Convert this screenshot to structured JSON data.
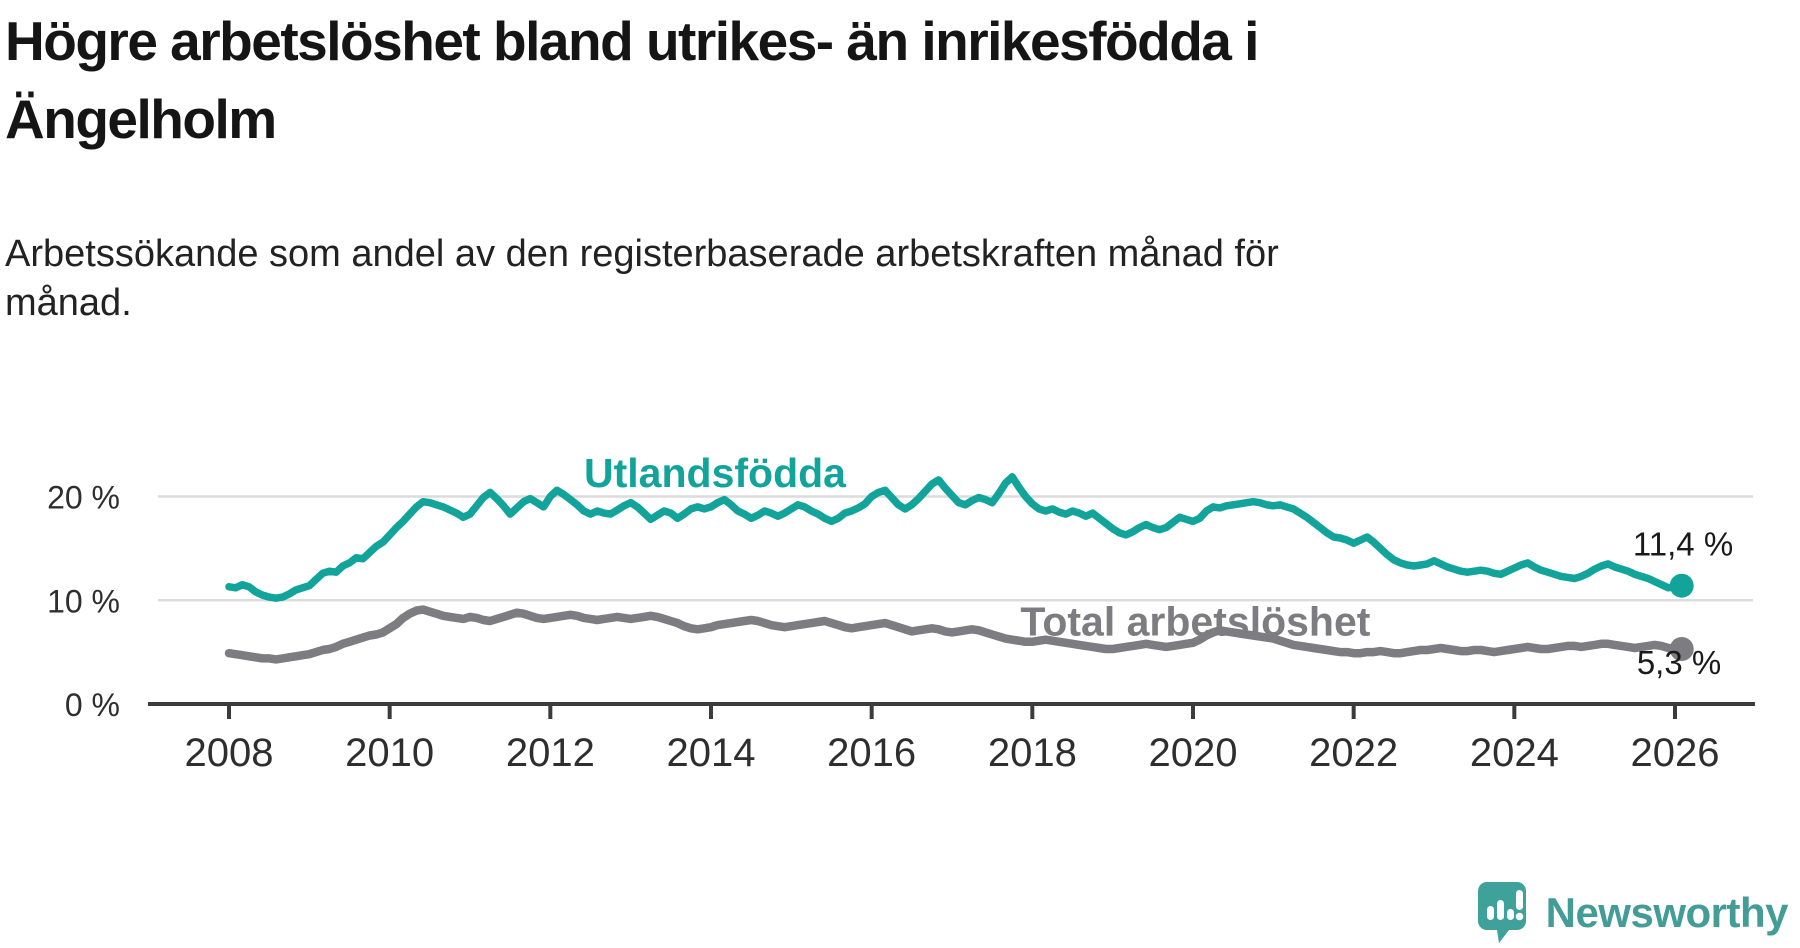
{
  "header": {
    "title_lines": [
      "Högre arbetslöshet bland utrikes- än inrikesfödda i",
      "Ängelholm"
    ],
    "subtitle_lines": [
      "Arbetssökande som andel av den registerbaserade arbetskraften månad för",
      "månad."
    ]
  },
  "footer": {
    "brand": "Newsworthy",
    "brand_color": "#449c96"
  },
  "chart_data": {
    "type": "line",
    "title": "Högre arbetslöshet bland utrikes- än inrikesfödda i Ängelholm",
    "subtitle": "Arbetssökande som andel av den registerbaserade arbetskraften månad för månad.",
    "x_start_year": 2008.0,
    "x_step_months": 1,
    "x_end_year": 2026.08,
    "ylim": [
      0,
      23.5
    ],
    "grid": "horizontal",
    "axes": {
      "yticks": [
        {
          "value": 0,
          "label": "0 %"
        },
        {
          "value": 10,
          "label": "10 %"
        },
        {
          "value": 20,
          "label": "20 %"
        }
      ],
      "xticks": [
        {
          "year": 2008,
          "label": "2008"
        },
        {
          "year": 2010,
          "label": "2010"
        },
        {
          "year": 2012,
          "label": "2012"
        },
        {
          "year": 2014,
          "label": "2014"
        },
        {
          "year": 2016,
          "label": "2016"
        },
        {
          "year": 2018,
          "label": "2018"
        },
        {
          "year": 2020,
          "label": "2020"
        },
        {
          "year": 2022,
          "label": "2022"
        },
        {
          "year": 2024,
          "label": "2024"
        },
        {
          "year": 2026,
          "label": "2026"
        }
      ]
    },
    "series": [
      {
        "name": "Utlandsfödda",
        "color": "#12a39b",
        "end_label": "11,4 %",
        "end_value": 11.4,
        "values": [
          11.3,
          11.2,
          11.5,
          11.3,
          10.8,
          10.5,
          10.3,
          10.2,
          10.3,
          10.6,
          11.0,
          11.2,
          11.4,
          12.0,
          12.6,
          12.8,
          12.7,
          13.3,
          13.6,
          14.1,
          14.0,
          14.6,
          15.2,
          15.6,
          16.3,
          17.0,
          17.6,
          18.3,
          19.0,
          19.5,
          19.4,
          19.2,
          19.0,
          18.7,
          18.4,
          18.0,
          18.3,
          19.1,
          19.9,
          20.4,
          19.8,
          19.1,
          18.3,
          18.9,
          19.5,
          19.8,
          19.4,
          19.0,
          20.0,
          20.6,
          20.2,
          19.7,
          19.2,
          18.6,
          18.3,
          18.6,
          18.4,
          18.3,
          18.7,
          19.1,
          19.4,
          19.0,
          18.4,
          17.8,
          18.2,
          18.6,
          18.4,
          17.9,
          18.3,
          18.8,
          19.0,
          18.8,
          19.0,
          19.4,
          19.7,
          19.2,
          18.6,
          18.3,
          17.9,
          18.2,
          18.6,
          18.4,
          18.1,
          18.4,
          18.8,
          19.2,
          19.0,
          18.6,
          18.3,
          17.9,
          17.6,
          17.9,
          18.4,
          18.6,
          18.9,
          19.3,
          20.0,
          20.4,
          20.6,
          19.9,
          19.2,
          18.8,
          19.2,
          19.8,
          20.5,
          21.2,
          21.6,
          20.8,
          20.1,
          19.4,
          19.2,
          19.6,
          19.9,
          19.7,
          19.4,
          20.3,
          21.3,
          21.9,
          20.9,
          20.0,
          19.3,
          18.8,
          18.6,
          18.8,
          18.5,
          18.3,
          18.6,
          18.4,
          18.1,
          18.4,
          17.9,
          17.4,
          16.9,
          16.5,
          16.3,
          16.6,
          17.0,
          17.3,
          17.0,
          16.8,
          17.0,
          17.5,
          18.0,
          17.8,
          17.6,
          17.9,
          18.6,
          19.0,
          18.9,
          19.1,
          19.2,
          19.3,
          19.4,
          19.5,
          19.4,
          19.2,
          19.1,
          19.2,
          19.0,
          18.8,
          18.4,
          18.0,
          17.5,
          17.0,
          16.5,
          16.1,
          16.0,
          15.8,
          15.5,
          15.8,
          16.1,
          15.6,
          15.0,
          14.4,
          13.9,
          13.6,
          13.4,
          13.3,
          13.4,
          13.5,
          13.8,
          13.5,
          13.2,
          13.0,
          12.8,
          12.7,
          12.8,
          12.9,
          12.8,
          12.6,
          12.5,
          12.8,
          13.1,
          13.4,
          13.6,
          13.2,
          12.9,
          12.7,
          12.5,
          12.3,
          12.2,
          12.1,
          12.3,
          12.6,
          13.0,
          13.3,
          13.5,
          13.2,
          13.0,
          12.8,
          12.5,
          12.3,
          12.1,
          11.8,
          11.5,
          11.2,
          11.3,
          11.4
        ]
      },
      {
        "name": "Total arbetslöshet",
        "color": "#7d7c81",
        "end_label": "5,3 %",
        "end_value": 5.3,
        "values": [
          4.9,
          4.8,
          4.7,
          4.6,
          4.5,
          4.4,
          4.4,
          4.3,
          4.4,
          4.5,
          4.6,
          4.7,
          4.8,
          5.0,
          5.2,
          5.3,
          5.5,
          5.8,
          6.0,
          6.2,
          6.4,
          6.6,
          6.7,
          6.9,
          7.3,
          7.7,
          8.3,
          8.7,
          9.0,
          9.1,
          8.9,
          8.7,
          8.5,
          8.4,
          8.3,
          8.2,
          8.4,
          8.3,
          8.1,
          8.0,
          8.2,
          8.4,
          8.6,
          8.8,
          8.7,
          8.5,
          8.3,
          8.2,
          8.3,
          8.4,
          8.5,
          8.6,
          8.5,
          8.3,
          8.2,
          8.1,
          8.2,
          8.3,
          8.4,
          8.3,
          8.2,
          8.3,
          8.4,
          8.5,
          8.4,
          8.2,
          8.0,
          7.8,
          7.5,
          7.3,
          7.2,
          7.3,
          7.4,
          7.6,
          7.7,
          7.8,
          7.9,
          8.0,
          8.1,
          8.0,
          7.8,
          7.6,
          7.5,
          7.4,
          7.5,
          7.6,
          7.7,
          7.8,
          7.9,
          8.0,
          7.8,
          7.6,
          7.4,
          7.3,
          7.4,
          7.5,
          7.6,
          7.7,
          7.8,
          7.6,
          7.4,
          7.2,
          7.0,
          7.1,
          7.2,
          7.3,
          7.2,
          7.0,
          6.9,
          7.0,
          7.1,
          7.2,
          7.1,
          6.9,
          6.7,
          6.5,
          6.3,
          6.2,
          6.1,
          6.0,
          6.0,
          6.1,
          6.2,
          6.1,
          6.0,
          5.9,
          5.8,
          5.7,
          5.6,
          5.5,
          5.4,
          5.3,
          5.3,
          5.4,
          5.5,
          5.6,
          5.7,
          5.8,
          5.7,
          5.6,
          5.5,
          5.6,
          5.7,
          5.8,
          5.9,
          6.2,
          6.6,
          6.9,
          7.1,
          7.0,
          6.9,
          6.8,
          6.7,
          6.6,
          6.5,
          6.4,
          6.3,
          6.1,
          5.9,
          5.7,
          5.6,
          5.5,
          5.4,
          5.3,
          5.2,
          5.1,
          5.0,
          5.0,
          4.9,
          4.9,
          5.0,
          5.0,
          5.1,
          5.0,
          4.9,
          4.9,
          5.0,
          5.1,
          5.2,
          5.2,
          5.3,
          5.4,
          5.3,
          5.2,
          5.1,
          5.1,
          5.2,
          5.2,
          5.1,
          5.0,
          5.1,
          5.2,
          5.3,
          5.4,
          5.5,
          5.4,
          5.3,
          5.3,
          5.4,
          5.5,
          5.6,
          5.6,
          5.5,
          5.6,
          5.7,
          5.8,
          5.8,
          5.7,
          5.6,
          5.5,
          5.4,
          5.5,
          5.6,
          5.7,
          5.6,
          5.4,
          5.3,
          5.3
        ]
      }
    ],
    "annotations": [
      {
        "text": "Utlandsfödda",
        "year": 2014.05,
        "value": 20.9,
        "color": "#12a39b",
        "kind": "series-label",
        "name": "series-label-utlandsfodda"
      },
      {
        "text": "Total arbetslöshet",
        "year": 2020.03,
        "value": 6.6,
        "color": "#7d7c81",
        "kind": "series-label",
        "name": "series-label-total"
      },
      {
        "text": "11,4 %",
        "year": 2026.1,
        "value": 14.3,
        "color": "#1a1a1a",
        "kind": "value-label",
        "name": "end-value-label-utlandsfodda"
      },
      {
        "text": "5,3 %",
        "year": 2026.05,
        "value": 2.9,
        "color": "#1a1a1a",
        "kind": "value-label",
        "name": "end-value-label-total"
      }
    ],
    "colors": {
      "gridline": "#dcdcdc",
      "axis": "#3b3b3b",
      "accent_teal": "#12a39b",
      "gray": "#7d7c81"
    }
  }
}
